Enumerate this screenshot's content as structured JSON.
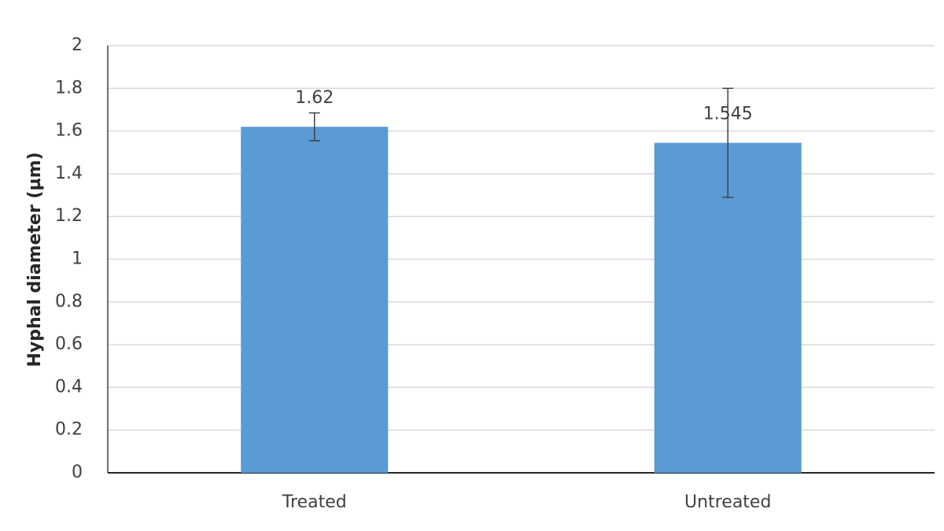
{
  "chart_data": {
    "type": "bar",
    "y_label": "Hyphal diameter (µm)",
    "categories": [
      "Treated",
      "Untreated"
    ],
    "values": [
      1.62,
      1.545
    ],
    "errors": [
      0.065,
      0.255
    ],
    "color": "#5b9bd5",
    "ylim": [
      0,
      2
    ],
    "yticks": [
      0,
      0.2,
      0.4,
      0.6,
      0.8,
      1,
      1.2,
      1.4,
      1.6,
      1.8,
      2
    ],
    "grid": true
  }
}
